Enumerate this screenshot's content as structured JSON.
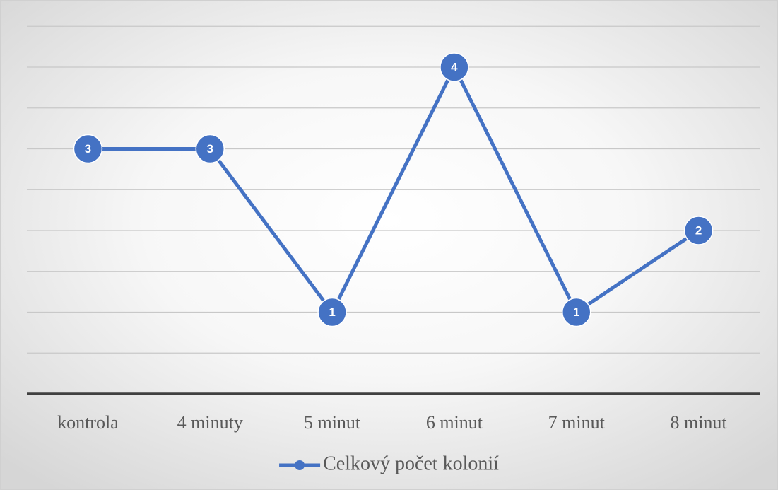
{
  "chart_data": {
    "type": "line",
    "categories": [
      "kontrola",
      "4 minuty",
      "5 minut",
      "6 minut",
      "7 minut",
      "8 minut"
    ],
    "series": [
      {
        "name": "Celkový počet kolonií",
        "color": "#4472c4",
        "values": [
          3,
          3,
          1,
          4,
          1,
          2
        ]
      }
    ],
    "ylim": [
      0,
      4.5
    ],
    "yticks": [
      0,
      0.5,
      1,
      1.5,
      2,
      2.5,
      3,
      3.5,
      4,
      4.5
    ],
    "grid": true,
    "legend": "bottom"
  }
}
